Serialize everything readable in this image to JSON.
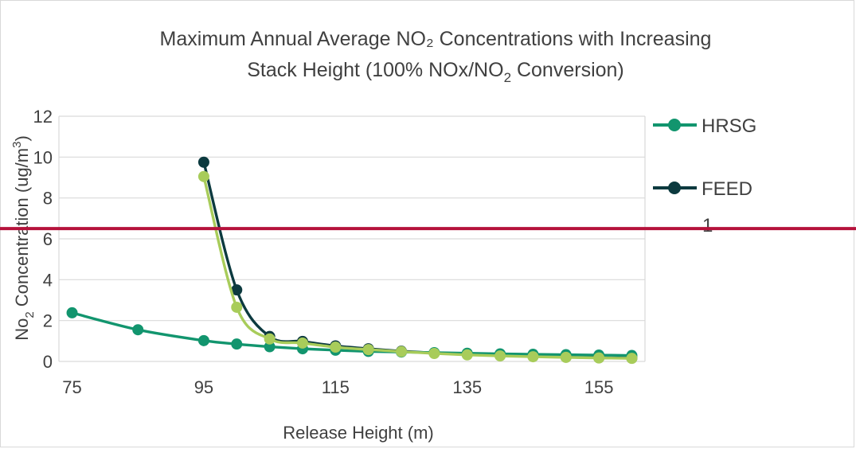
{
  "chart_data": {
    "type": "line",
    "title_line1": "Maximum Annual Average NO₂ Concentrations with Increasing",
    "title_line2": "Stack Height (100% NOx/NO",
    "title_line2_sub": "2",
    "title_line2_end": " Conversion)",
    "xlabel": "Release Height (m)",
    "ylabel_main": "No",
    "ylabel_sub": "2",
    "ylabel_rest": "  Concentration (ug/m",
    "ylabel_sup": "3",
    "ylabel_end": ")",
    "xlim": [
      73,
      162
    ],
    "ylim": [
      0,
      12
    ],
    "xticks": [
      75,
      95,
      115,
      135,
      155
    ],
    "yticks": [
      0,
      2,
      4,
      6,
      8,
      10,
      12
    ],
    "grid": true,
    "legend_position": "right",
    "series": [
      {
        "name": "HRSG",
        "color": "#12956e",
        "x": [
          75,
          85,
          95,
          100,
          105,
          110,
          115,
          120,
          125,
          130,
          135,
          140,
          145,
          150,
          155,
          160
        ],
        "y": [
          2.38,
          1.55,
          1.02,
          0.85,
          0.72,
          0.62,
          0.55,
          0.49,
          0.46,
          0.43,
          0.4,
          0.37,
          0.35,
          0.33,
          0.31,
          0.29
        ]
      },
      {
        "name": "FEED",
        "color": "#0c3a3f",
        "x": [
          95,
          100,
          105,
          110,
          115,
          120,
          125,
          130,
          135,
          140,
          145,
          150,
          155,
          160
        ],
        "y": [
          9.75,
          3.5,
          1.22,
          0.98,
          0.76,
          0.62,
          0.5,
          0.41,
          0.34,
          0.29,
          0.25,
          0.21,
          0.18,
          0.16
        ]
      },
      {
        "name": "",
        "color": "#a8cc5a",
        "x": [
          95,
          100,
          105,
          110,
          115,
          120,
          125,
          130,
          135,
          140,
          145,
          150,
          155,
          160
        ],
        "y": [
          9.05,
          2.65,
          1.1,
          0.9,
          0.7,
          0.58,
          0.48,
          0.39,
          0.32,
          0.27,
          0.23,
          0.2,
          0.17,
          0.15
        ]
      }
    ],
    "legend_overflow_label": "1",
    "reference_line": {
      "y": 6.5,
      "color": "#b5123b"
    }
  }
}
